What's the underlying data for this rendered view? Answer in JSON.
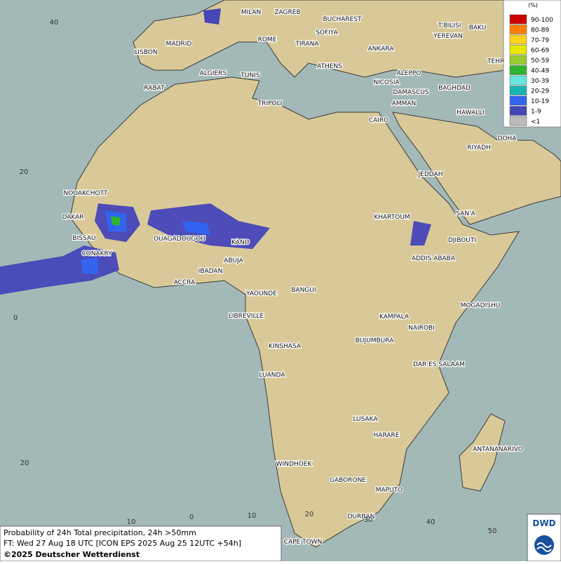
{
  "legend": {
    "title": "(%)",
    "items": [
      {
        "label": "90-100",
        "color": "#cc0000"
      },
      {
        "label": "80-89",
        "color": "#ff7f00"
      },
      {
        "label": "70-79",
        "color": "#ffd21e"
      },
      {
        "label": "60-69",
        "color": "#e8e800"
      },
      {
        "label": "50-59",
        "color": "#9acd32"
      },
      {
        "label": "40-49",
        "color": "#2fb42f"
      },
      {
        "label": "30-39",
        "color": "#66e6e0"
      },
      {
        "label": "20-29",
        "color": "#1ab4b4"
      },
      {
        "label": "10-19",
        "color": "#3264f0"
      },
      {
        "label": "1-9",
        "color": "#4646b9"
      },
      {
        "label": "<1",
        "color": "#bbbbbb"
      }
    ]
  },
  "cities": [
    "MILAN",
    "ZAGREB",
    "BUCHAREST",
    "T'BILISI",
    "BAKU",
    "ROME",
    "SOFIYA",
    "YEREVAN",
    "MADRID",
    "TIRANA",
    "ANKARA",
    "LISBON",
    "TEHRA",
    "ATHENS",
    "ALGIERS",
    "TUNIS",
    "ALEPPO",
    "RABAT",
    "NICOSIA",
    "BAGHDAD",
    "DAMASCUS",
    "TRIPOLI",
    "AMMAN",
    "HAWALLI",
    "CAIRO",
    "DOHA",
    "RIYADH",
    "JEDDAH",
    "NOUAKCHOTT",
    "SAN'A",
    "KHARTOUM",
    "DAKAR",
    "BISSAU",
    "DJIBOUTI",
    "OUAGADOUGOU",
    "KANO",
    "CONAKRY",
    "ADDIS ABABA",
    "ABUJA",
    "IBADAN",
    "ACCRA",
    "YAOUNDE",
    "BANGUI",
    "MOGADISHU",
    "LIBREVILLE",
    "KAMPALA",
    "NAIROBI",
    "BUJUMBURA",
    "KINSHASA",
    "DAR ES SALAAM",
    "LUANDA",
    "LUSAKA",
    "HARARE",
    "ANTANANARIVO",
    "WINDHOEK",
    "GABORONE",
    "MAPUTO",
    "DURBAN",
    "CAPE TOWN"
  ],
  "grid_labels": [
    "40",
    "20",
    "0",
    "20",
    "10",
    "0",
    "10",
    "20",
    "30",
    "40",
    "50"
  ],
  "footer": {
    "line1": "Probability of 24h Total precipitation, 24h >50mm",
    "line2": "FT: Wed 27 Aug 18 UTC [ICON EPS 2025 Aug 25 12UTC +54h]",
    "line3": "©2025 Deutscher Wetterdienst"
  },
  "logo": "DWD"
}
